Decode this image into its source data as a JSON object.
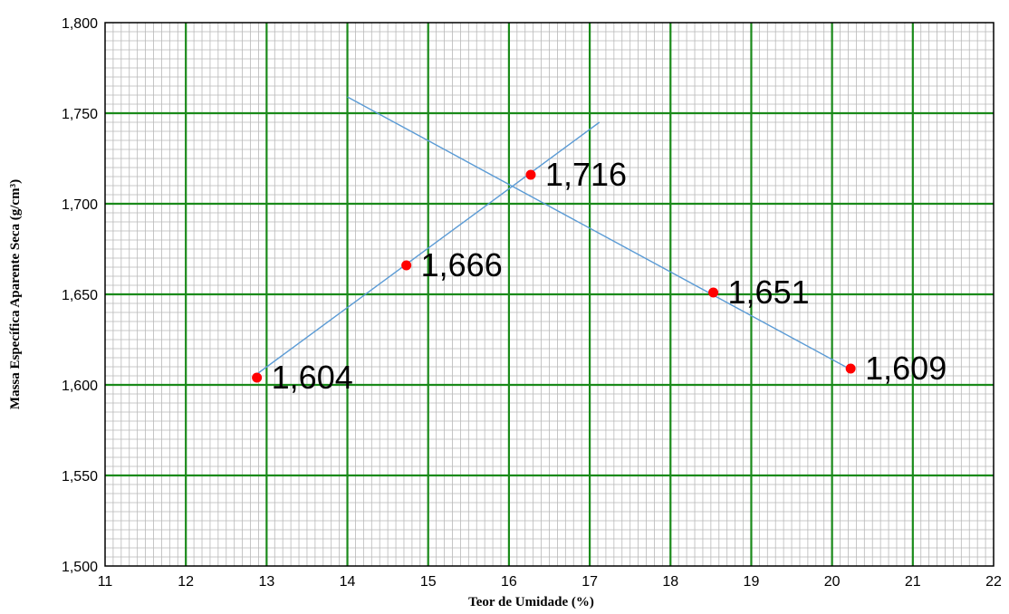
{
  "chart_data": {
    "type": "scatter",
    "title": "",
    "xlabel": "Teor de Umidade (%)",
    "ylabel": "Massa Específica Aparente Seca (g/cm³)",
    "xlim": [
      11,
      22
    ],
    "ylim": [
      1.5,
      1.8
    ],
    "x_ticks": [
      11,
      12,
      13,
      14,
      15,
      16,
      17,
      18,
      19,
      20,
      21,
      22
    ],
    "y_ticks": [
      1.5,
      1.55,
      1.6,
      1.65,
      1.7,
      1.75,
      1.8
    ],
    "y_tick_labels": [
      "1,500",
      "1,550",
      "1,600",
      "1,650",
      "1,700",
      "1,750",
      "1,800"
    ],
    "grid": true,
    "legend": "none",
    "points": [
      {
        "x": 12.88,
        "y": 1.604,
        "label": "1,604"
      },
      {
        "x": 14.73,
        "y": 1.666,
        "label": "1,666"
      },
      {
        "x": 16.27,
        "y": 1.716,
        "label": "1,716"
      },
      {
        "x": 18.53,
        "y": 1.651,
        "label": "1,651"
      },
      {
        "x": 20.23,
        "y": 1.609,
        "label": "1,609"
      }
    ],
    "lines": [
      {
        "x1": 12.85,
        "y1": 1.605,
        "x2": 17.12,
        "y2": 1.745
      },
      {
        "x1": 14.0,
        "y1": 1.759,
        "x2": 20.25,
        "y2": 1.608
      }
    ],
    "colors": {
      "major_grid": "#1a8a1a",
      "minor_grid": "#b8b8b8",
      "marker": "#ff0000",
      "trend_line": "#5b9bd5",
      "axis": "#000000"
    }
  }
}
